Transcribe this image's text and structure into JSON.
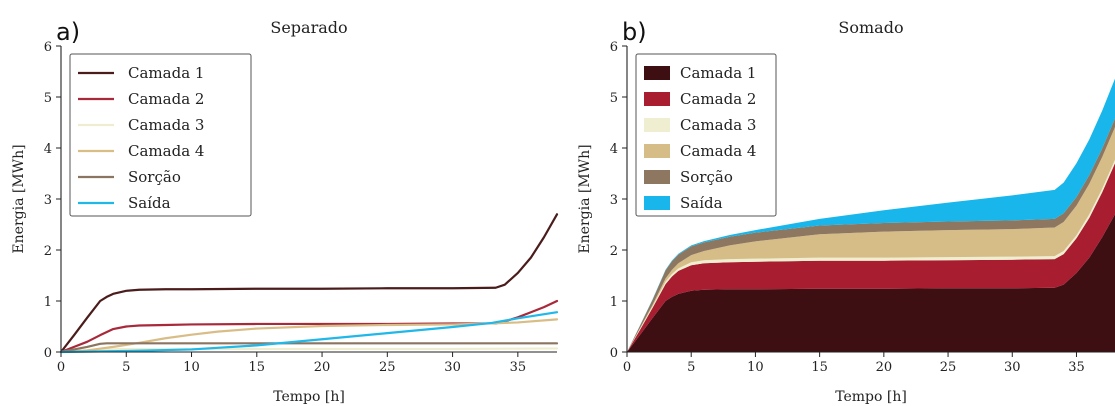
{
  "chart_data": [
    {
      "type": "line",
      "panel_label": "a)",
      "title": "Separado",
      "xlabel": "Tempo [h]",
      "ylabel": "Energia [MWh]",
      "xlim": [
        0,
        38
      ],
      "ylim": [
        0,
        6
      ],
      "xticks": [
        "0",
        "5",
        "10",
        "15",
        "20",
        "25",
        "30",
        "35"
      ],
      "yticks": [
        "0",
        "1",
        "2",
        "3",
        "4",
        "5",
        "6"
      ],
      "legend_position": "top-left",
      "grid": false,
      "series": [
        {
          "name": "Camada 1",
          "color": "#4a1c1c",
          "x": [
            0,
            1,
            2,
            3,
            3.5,
            4,
            5,
            6,
            8,
            10,
            15,
            20,
            25,
            30,
            33.3,
            34,
            35,
            36,
            37,
            38
          ],
          "y": [
            0,
            0.33,
            0.67,
            1.0,
            1.08,
            1.14,
            1.2,
            1.22,
            1.23,
            1.23,
            1.24,
            1.24,
            1.25,
            1.25,
            1.26,
            1.32,
            1.55,
            1.85,
            2.25,
            2.7
          ]
        },
        {
          "name": "Camada 2",
          "color": "#a8293a",
          "x": [
            0,
            1,
            2,
            3,
            4,
            5,
            6,
            8,
            10,
            15,
            20,
            25,
            30,
            33.3,
            34,
            35,
            36,
            37,
            38
          ],
          "y": [
            0,
            0.1,
            0.2,
            0.33,
            0.45,
            0.5,
            0.52,
            0.53,
            0.54,
            0.55,
            0.55,
            0.55,
            0.56,
            0.56,
            0.6,
            0.68,
            0.78,
            0.88,
            1.0
          ]
        },
        {
          "name": "Camada 3",
          "color": "#efedcf",
          "x": [
            0,
            3,
            5,
            10,
            20,
            30,
            38
          ],
          "y": [
            0,
            0.05,
            0.06,
            0.06,
            0.06,
            0.06,
            0.07
          ]
        },
        {
          "name": "Camada 4",
          "color": "#d9bd86",
          "x": [
            0,
            2,
            4,
            6,
            8,
            10,
            12,
            15,
            20,
            25,
            30,
            33,
            35,
            38
          ],
          "y": [
            0,
            0.03,
            0.1,
            0.18,
            0.27,
            0.34,
            0.4,
            0.46,
            0.51,
            0.53,
            0.54,
            0.56,
            0.58,
            0.64
          ]
        },
        {
          "name": "Sorção",
          "color": "#8b7560",
          "x": [
            0,
            1,
            2,
            3,
            3.5,
            5,
            10,
            20,
            30,
            38
          ],
          "y": [
            0,
            0.05,
            0.1,
            0.16,
            0.17,
            0.17,
            0.17,
            0.17,
            0.17,
            0.17
          ]
        },
        {
          "name": "Saída",
          "color": "#1fb8e8",
          "x": [
            0,
            5,
            10,
            15,
            20,
            25,
            30,
            33,
            35,
            38
          ],
          "y": [
            0,
            0.02,
            0.05,
            0.13,
            0.25,
            0.37,
            0.49,
            0.57,
            0.66,
            0.78
          ]
        }
      ]
    },
    {
      "type": "area",
      "stacked": true,
      "panel_label": "b)",
      "title": "Somado",
      "xlabel": "Tempo [h]",
      "ylabel": "Energia [MWh]",
      "xlim": [
        0,
        38
      ],
      "ylim": [
        0,
        6
      ],
      "xticks": [
        "0",
        "5",
        "10",
        "15",
        "20",
        "25",
        "30",
        "35"
      ],
      "yticks": [
        "0",
        "1",
        "2",
        "3",
        "4",
        "5",
        "6"
      ],
      "legend_position": "top-left",
      "grid": false,
      "series": [
        {
          "name": "Camada 1",
          "color": "#3d0f13",
          "x": [
            0,
            1,
            2,
            3,
            3.5,
            4,
            5,
            6,
            8,
            10,
            15,
            20,
            25,
            30,
            33.3,
            34,
            35,
            36,
            37,
            38
          ],
          "y": [
            0,
            0.33,
            0.67,
            1.0,
            1.08,
            1.14,
            1.2,
            1.22,
            1.23,
            1.23,
            1.24,
            1.24,
            1.25,
            1.25,
            1.26,
            1.32,
            1.55,
            1.85,
            2.25,
            2.7
          ]
        },
        {
          "name": "Camada 2",
          "color": "#a81d30",
          "x": [
            0,
            1,
            2,
            3,
            3.5,
            4,
            5,
            6,
            8,
            10,
            15,
            20,
            25,
            30,
            33.3,
            34,
            35,
            36,
            37,
            38
          ],
          "y": [
            0,
            0.1,
            0.2,
            0.33,
            0.4,
            0.45,
            0.5,
            0.52,
            0.53,
            0.54,
            0.55,
            0.55,
            0.55,
            0.56,
            0.56,
            0.6,
            0.68,
            0.78,
            0.88,
            1.0
          ]
        },
        {
          "name": "Camada 3",
          "color": "#f0eed0",
          "x": [
            0,
            1,
            2,
            3,
            3.5,
            4,
            5,
            6,
            8,
            10,
            15,
            20,
            25,
            30,
            33.3,
            34,
            35,
            36,
            37,
            38
          ],
          "y": [
            0,
            0.02,
            0.03,
            0.05,
            0.05,
            0.05,
            0.06,
            0.06,
            0.06,
            0.06,
            0.06,
            0.06,
            0.06,
            0.06,
            0.06,
            0.06,
            0.06,
            0.07,
            0.07,
            0.07
          ]
        },
        {
          "name": "Camada 4",
          "color": "#d6bd88",
          "x": [
            0,
            1,
            2,
            3,
            3.5,
            4,
            5,
            6,
            8,
            10,
            15,
            20,
            25,
            30,
            33.3,
            34,
            35,
            36,
            37,
            38
          ],
          "y": [
            0,
            0.01,
            0.03,
            0.06,
            0.08,
            0.1,
            0.14,
            0.18,
            0.27,
            0.34,
            0.46,
            0.51,
            0.53,
            0.54,
            0.56,
            0.57,
            0.58,
            0.6,
            0.62,
            0.64
          ]
        },
        {
          "name": "Sorção",
          "color": "#8e7760",
          "x": [
            0,
            1,
            2,
            3,
            3.5,
            4,
            5,
            6,
            8,
            10,
            15,
            20,
            25,
            30,
            33.3,
            34,
            35,
            36,
            37,
            38
          ],
          "y": [
            0,
            0.05,
            0.1,
            0.16,
            0.17,
            0.17,
            0.17,
            0.17,
            0.17,
            0.17,
            0.17,
            0.17,
            0.17,
            0.17,
            0.17,
            0.17,
            0.17,
            0.17,
            0.17,
            0.17
          ]
        },
        {
          "name": "Saída",
          "color": "#18b6ea",
          "x": [
            0,
            1,
            2,
            3,
            3.5,
            4,
            5,
            6,
            8,
            10,
            15,
            20,
            25,
            30,
            33.3,
            34,
            35,
            36,
            37,
            38
          ],
          "y": [
            0,
            0.005,
            0.01,
            0.012,
            0.014,
            0.016,
            0.02,
            0.025,
            0.035,
            0.05,
            0.13,
            0.25,
            0.37,
            0.49,
            0.57,
            0.6,
            0.66,
            0.7,
            0.74,
            0.78
          ]
        }
      ]
    }
  ]
}
